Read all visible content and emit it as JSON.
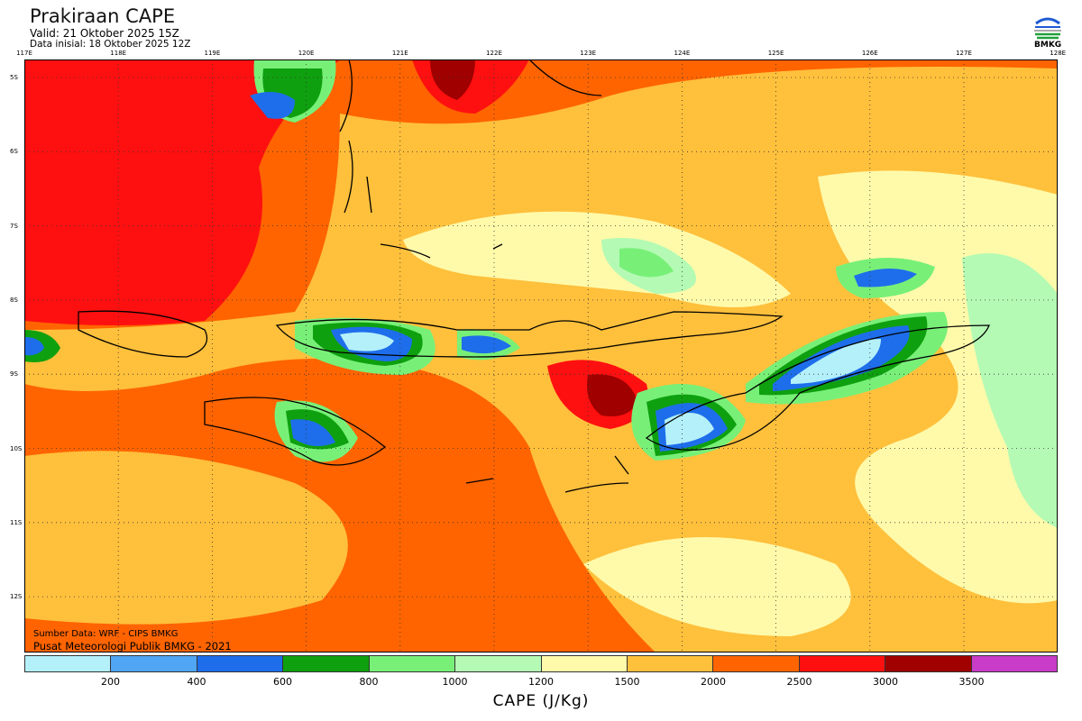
{
  "header": {
    "title": "Prakiraan CAPE",
    "valid": "Valid: 21 Oktober 2025 15Z",
    "initial": "Data inisial: 18 Oktober 2025 12Z",
    "logo_text": "BMKG"
  },
  "axes": {
    "lon_labels": [
      "117E",
      "118E",
      "119E",
      "120E",
      "121E",
      "122E",
      "123E",
      "124E",
      "125E",
      "126E",
      "127E",
      "128E"
    ],
    "lat_labels": [
      "5S",
      "6S",
      "7S",
      "8S",
      "9S",
      "10S",
      "11S",
      "12S"
    ]
  },
  "credits": {
    "source": "Sumber Data: WRF - CIPS BMKG",
    "org": "Pusat Meteorologi Publik BMKG - 2021"
  },
  "colorbar": {
    "unit": "CAPE (J/Kg)",
    "ticks": [
      "200",
      "400",
      "600",
      "800",
      "1000",
      "1200",
      "1500",
      "2000",
      "2500",
      "3000",
      "3500"
    ],
    "colors": [
      "#b4f0fa",
      "#50a5f5",
      "#1e6eeb",
      "#0fa00f",
      "#78f078",
      "#b4fab4",
      "#fffaaa",
      "#ffc03c",
      "#ff6400",
      "#ff1010",
      "#a00000",
      "#c83cc8"
    ]
  }
}
